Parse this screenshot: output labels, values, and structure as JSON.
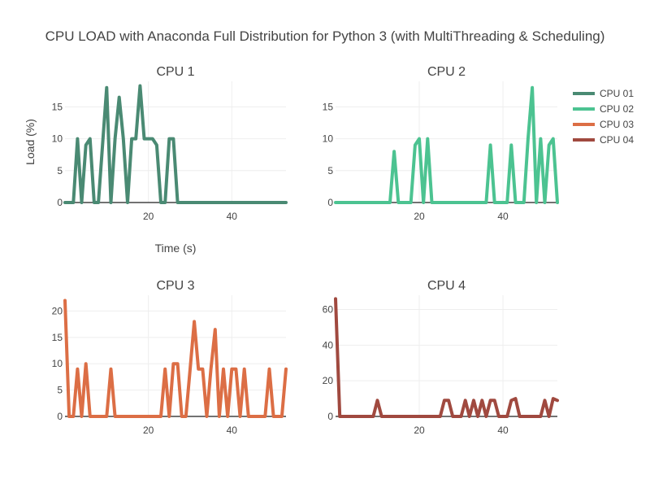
{
  "title": "CPU LOAD with Anaconda Full Distribution for Python 3 (with MultiThreading & Scheduling)",
  "x_axis_title": "Time (s)",
  "y_axis_title": "Load (%)",
  "legend": [
    {
      "label": "CPU 01",
      "color": "#4a8a73"
    },
    {
      "label": "CPU 02",
      "color": "#4cc391"
    },
    {
      "label": "CPU 03",
      "color": "#dc6e45"
    },
    {
      "label": "CPU 04",
      "color": "#a0493f"
    }
  ],
  "chart_data": [
    {
      "type": "line",
      "title": "CPU 1",
      "xlabel": "Time (s)",
      "ylabel": "Load (%)",
      "xlim": [
        0,
        53
      ],
      "ylim": [
        0,
        19
      ],
      "xticks": [
        20,
        40
      ],
      "yticks": [
        0,
        5,
        10,
        15
      ],
      "grid": true,
      "series": [
        {
          "name": "CPU 01",
          "color": "#4a8a73",
          "x": [
            0,
            1,
            2,
            3,
            4,
            5,
            6,
            7,
            8,
            9,
            10,
            11,
            12,
            13,
            14,
            15,
            16,
            17,
            18,
            19,
            20,
            21,
            22,
            23,
            24,
            25,
            26,
            27,
            28,
            29,
            30,
            31,
            32,
            33,
            34,
            35,
            36,
            37,
            38,
            39,
            40,
            41,
            42,
            43,
            44,
            45,
            46,
            47,
            48,
            49,
            50,
            51,
            52,
            53
          ],
          "y": [
            0,
            0,
            0,
            10,
            0,
            9,
            10,
            0,
            0,
            9,
            18,
            0,
            10,
            16.5,
            10,
            0,
            10,
            10,
            18.3,
            10,
            10,
            10,
            9,
            0,
            0,
            10,
            10,
            0,
            0,
            0,
            0,
            0,
            0,
            0,
            0,
            0,
            0,
            0,
            0,
            0,
            0,
            0,
            0,
            0,
            0,
            0,
            0,
            0,
            0,
            0,
            0,
            0,
            0,
            0
          ]
        }
      ]
    },
    {
      "type": "line",
      "title": "CPU 2",
      "xlim": [
        0,
        53
      ],
      "ylim": [
        0,
        19
      ],
      "xticks": [
        20,
        40
      ],
      "yticks": [
        0,
        5,
        10,
        15
      ],
      "grid": true,
      "series": [
        {
          "name": "CPU 02",
          "color": "#4cc391",
          "x": [
            0,
            1,
            2,
            3,
            4,
            5,
            6,
            7,
            8,
            9,
            10,
            11,
            12,
            13,
            14,
            15,
            16,
            17,
            18,
            19,
            20,
            21,
            22,
            23,
            24,
            25,
            26,
            27,
            28,
            29,
            30,
            31,
            32,
            33,
            34,
            35,
            36,
            37,
            38,
            39,
            40,
            41,
            42,
            43,
            44,
            45,
            46,
            47,
            48,
            49,
            50,
            51,
            52,
            53
          ],
          "y": [
            0,
            0,
            0,
            0,
            0,
            0,
            0,
            0,
            0,
            0,
            0,
            0,
            0,
            0,
            8,
            0,
            0,
            0,
            0,
            9,
            10,
            0,
            10,
            0,
            0,
            0,
            0,
            0,
            0,
            0,
            0,
            0,
            0,
            0,
            0,
            0,
            0,
            9,
            0,
            0,
            0,
            0,
            9,
            0,
            0,
            0,
            10,
            18,
            0,
            10,
            0,
            9,
            10,
            0
          ]
        }
      ]
    },
    {
      "type": "line",
      "title": "CPU 3",
      "xlim": [
        0,
        53
      ],
      "ylim": [
        0,
        23
      ],
      "xticks": [
        20,
        40
      ],
      "yticks": [
        0,
        5,
        10,
        15,
        20
      ],
      "grid": true,
      "series": [
        {
          "name": "CPU 03",
          "color": "#dc6e45",
          "x": [
            0,
            1,
            2,
            3,
            4,
            5,
            6,
            7,
            8,
            9,
            10,
            11,
            12,
            13,
            14,
            15,
            16,
            17,
            18,
            19,
            20,
            21,
            22,
            23,
            24,
            25,
            26,
            27,
            28,
            29,
            30,
            31,
            32,
            33,
            34,
            35,
            36,
            37,
            38,
            39,
            40,
            41,
            42,
            43,
            44,
            45,
            46,
            47,
            48,
            49,
            50,
            51,
            52,
            53
          ],
          "y": [
            22,
            0,
            0,
            9,
            0,
            10,
            0,
            0,
            0,
            0,
            0,
            9,
            0,
            0,
            0,
            0,
            0,
            0,
            0,
            0,
            0,
            0,
            0,
            0,
            9,
            0,
            10,
            10,
            0,
            0,
            9,
            18,
            9,
            9,
            0,
            9,
            16.5,
            0,
            9,
            0,
            9,
            9,
            0,
            9,
            0,
            0,
            0,
            0,
            0,
            9,
            0,
            0,
            0,
            9
          ]
        }
      ]
    },
    {
      "type": "line",
      "title": "CPU 4",
      "xlim": [
        0,
        53
      ],
      "ylim": [
        0,
        68
      ],
      "xticks": [
        20,
        40
      ],
      "yticks": [
        0,
        20,
        40,
        60
      ],
      "grid": true,
      "series": [
        {
          "name": "CPU 04",
          "color": "#a0493f",
          "x": [
            0,
            1,
            2,
            3,
            4,
            5,
            6,
            7,
            8,
            9,
            10,
            11,
            12,
            13,
            14,
            15,
            16,
            17,
            18,
            19,
            20,
            21,
            22,
            23,
            24,
            25,
            26,
            27,
            28,
            29,
            30,
            31,
            32,
            33,
            34,
            35,
            36,
            37,
            38,
            39,
            40,
            41,
            42,
            43,
            44,
            45,
            46,
            47,
            48,
            49,
            50,
            51,
            52,
            53
          ],
          "y": [
            66,
            0,
            0,
            0,
            0,
            0,
            0,
            0,
            0,
            0,
            9,
            0,
            0,
            0,
            0,
            0,
            0,
            0,
            0,
            0,
            0,
            0,
            0,
            0,
            0,
            0,
            9,
            9,
            0,
            0,
            0,
            9,
            0,
            9,
            0,
            9,
            0,
            9,
            9,
            0,
            0,
            0,
            9,
            10,
            0,
            0,
            0,
            0,
            0,
            0,
            9,
            0,
            10,
            9
          ]
        }
      ]
    }
  ]
}
